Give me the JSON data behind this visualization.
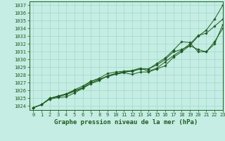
{
  "xlabel": "Graphe pression niveau de la mer (hPa)",
  "ylim": [
    1023.5,
    1037.5
  ],
  "xlim": [
    -0.5,
    23
  ],
  "yticks": [
    1024,
    1025,
    1026,
    1027,
    1028,
    1029,
    1030,
    1031,
    1032,
    1033,
    1034,
    1035,
    1036,
    1037
  ],
  "xticks": [
    0,
    1,
    2,
    3,
    4,
    5,
    6,
    7,
    8,
    9,
    10,
    11,
    12,
    13,
    14,
    15,
    16,
    17,
    18,
    19,
    20,
    21,
    22,
    23
  ],
  "background_color": "#c5ede3",
  "grid_color": "#9fd8ca",
  "line_color": "#1e5c1e",
  "line1": [
    1023.8,
    1024.2,
    1025.0,
    1025.3,
    1025.5,
    1026.0,
    1026.4,
    1027.2,
    1027.5,
    1027.8,
    1028.1,
    1028.3,
    1028.1,
    1028.4,
    1028.4,
    1028.8,
    1029.2,
    1030.3,
    1031.0,
    1031.8,
    1033.0,
    1033.8,
    1035.2,
    1037.0
  ],
  "line2": [
    1023.8,
    1024.2,
    1025.0,
    1025.3,
    1025.6,
    1026.1,
    1026.6,
    1027.2,
    1027.6,
    1028.2,
    1028.4,
    1028.5,
    1028.6,
    1028.9,
    1028.5,
    1028.9,
    1029.7,
    1030.5,
    1031.2,
    1032.0,
    1033.1,
    1033.4,
    1034.3,
    1035.2
  ],
  "line3": [
    1023.8,
    1024.2,
    1025.0,
    1025.2,
    1025.5,
    1025.9,
    1026.3,
    1026.9,
    1027.3,
    1027.9,
    1028.2,
    1028.4,
    1028.5,
    1028.8,
    1028.8,
    1029.5,
    1030.2,
    1031.2,
    1032.3,
    1032.2,
    1031.0,
    1031.0,
    1032.3,
    1034.0
  ],
  "line4": [
    1023.8,
    1024.2,
    1024.9,
    1025.1,
    1025.2,
    1025.7,
    1026.3,
    1027.0,
    1027.4,
    1027.9,
    1028.2,
    1028.4,
    1028.5,
    1028.8,
    1028.8,
    1029.3,
    1030.0,
    1031.0,
    1031.3,
    1031.8,
    1031.3,
    1031.0,
    1032.0,
    1034.5
  ],
  "tick_fontsize": 5.0,
  "label_fontsize": 6.5,
  "linewidth": 0.7,
  "markersize": 1.8
}
